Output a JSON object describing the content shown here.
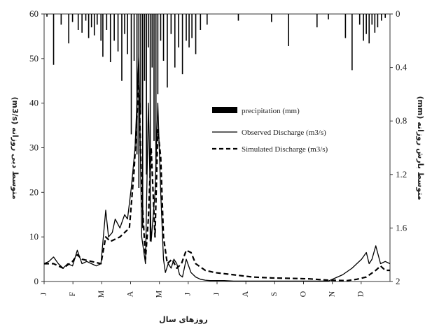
{
  "chart_data": {
    "type": "line",
    "xlabel": "روزهای سال",
    "ylabel_left": "متوسط دبی روزانه (m3/s)",
    "ylabel_right": "متوسط بارش روزانه (mm)",
    "ylim_left": [
      0,
      60
    ],
    "yticks_left": [
      "0",
      "10",
      "20",
      "30",
      "40",
      "50",
      "60"
    ],
    "ylim_right_inverted": [
      0,
      2
    ],
    "yticks_right": [
      "0",
      "0.4",
      "0.8",
      "1.2",
      "1.6",
      "2"
    ],
    "months": [
      "J",
      "F",
      "M",
      "A",
      "M",
      "J",
      "J",
      "A",
      "S",
      "O",
      "N",
      "D"
    ],
    "legend": {
      "placement": "center-right",
      "entries": [
        "precipitation (mm)",
        "Observed Discharge (m3/s)",
        "Simulated Discharge (m3/s)"
      ]
    },
    "series": [
      {
        "name": "Observed Discharge (m3/s)",
        "style": "solid",
        "x": [
          0,
          5,
          10,
          15,
          20,
          25,
          30,
          35,
          40,
          45,
          50,
          55,
          60,
          65,
          68,
          72,
          75,
          80,
          85,
          88,
          92,
          96,
          100,
          103,
          107,
          110,
          113,
          117,
          120,
          123,
          126,
          128,
          131,
          134,
          137,
          140,
          143,
          146,
          150,
          155,
          160,
          165,
          170,
          175,
          180,
          190,
          200,
          220,
          240,
          260,
          280,
          300,
          315,
          325,
          330,
          335,
          340,
          343,
          346,
          350,
          355,
          360,
          365
        ],
        "y": [
          4,
          4.5,
          5.5,
          4,
          3,
          4,
          3.5,
          7,
          4,
          4.5,
          4,
          3.5,
          4,
          16,
          10,
          11,
          14,
          12,
          15,
          14,
          21,
          30,
          51,
          10,
          4,
          40,
          9,
          20,
          40,
          20,
          5,
          2,
          4,
          3,
          5,
          4,
          1.5,
          1,
          5,
          2,
          1,
          0.5,
          0.3,
          0.2,
          0.2,
          0.2,
          0.1,
          0.1,
          0.1,
          0.1,
          0.1,
          0.1,
          1.5,
          3,
          4,
          5,
          6.5,
          4,
          5,
          8,
          4,
          4.5,
          4
        ]
      },
      {
        "name": "Simulated Discharge (m3/s)",
        "style": "dashed",
        "x": [
          0,
          10,
          20,
          30,
          35,
          40,
          50,
          60,
          65,
          70,
          80,
          90,
          95,
          100,
          103,
          107,
          110,
          113,
          117,
          120,
          123,
          126,
          130,
          135,
          140,
          145,
          150,
          155,
          160,
          170,
          180,
          200,
          220,
          240,
          260,
          280,
          300,
          320,
          330,
          340,
          350,
          355,
          360,
          365
        ],
        "y": [
          4,
          4,
          3,
          4.5,
          6,
          5,
          4.5,
          4,
          10,
          9,
          10,
          12,
          25,
          45,
          20,
          5,
          14,
          30,
          10,
          34,
          28,
          10,
          4,
          5,
          3,
          4,
          7,
          6.5,
          4,
          2.5,
          2,
          1.5,
          1,
          0.8,
          0.7,
          0.6,
          0.3,
          0.2,
          0.5,
          1,
          2.5,
          3.5,
          2.5,
          2.5
        ]
      },
      {
        "name": "precipitation (mm)",
        "style": "bars-from-top",
        "x": [
          3,
          10,
          18,
          26,
          30,
          36,
          40,
          44,
          47,
          50,
          53,
          56,
          60,
          62,
          66,
          70,
          74,
          78,
          82,
          85,
          88,
          92,
          95,
          98,
          100,
          102,
          104,
          106,
          108,
          110,
          112,
          114,
          116,
          118,
          120,
          123,
          126,
          130,
          134,
          138,
          142,
          146,
          150,
          153,
          156,
          160,
          165,
          172,
          205,
          240,
          258,
          288,
          300,
          318,
          325,
          333,
          337,
          340,
          343,
          346,
          349,
          352,
          356,
          360
        ],
        "y": [
          0.02,
          0.38,
          0.08,
          0.22,
          0.06,
          0.12,
          0.14,
          0.05,
          0.18,
          0.1,
          0.16,
          0.08,
          0.2,
          0.32,
          0.12,
          0.36,
          0.2,
          0.28,
          0.5,
          0.15,
          0.3,
          0.9,
          0.35,
          1.05,
          1.3,
          0.75,
          1.6,
          0.5,
          1.2,
          0.25,
          1.7,
          0.4,
          0.95,
          1.15,
          0.6,
          0.2,
          0.35,
          0.55,
          0.15,
          0.4,
          0.25,
          0.45,
          0.2,
          0.25,
          0.18,
          0.3,
          0.12,
          0.08,
          0.05,
          0.06,
          0.24,
          0.1,
          0.04,
          0.18,
          0.42,
          0.08,
          0.2,
          0.15,
          0.22,
          0.08,
          0.14,
          0.1,
          0.05,
          0.03
        ]
      }
    ]
  }
}
